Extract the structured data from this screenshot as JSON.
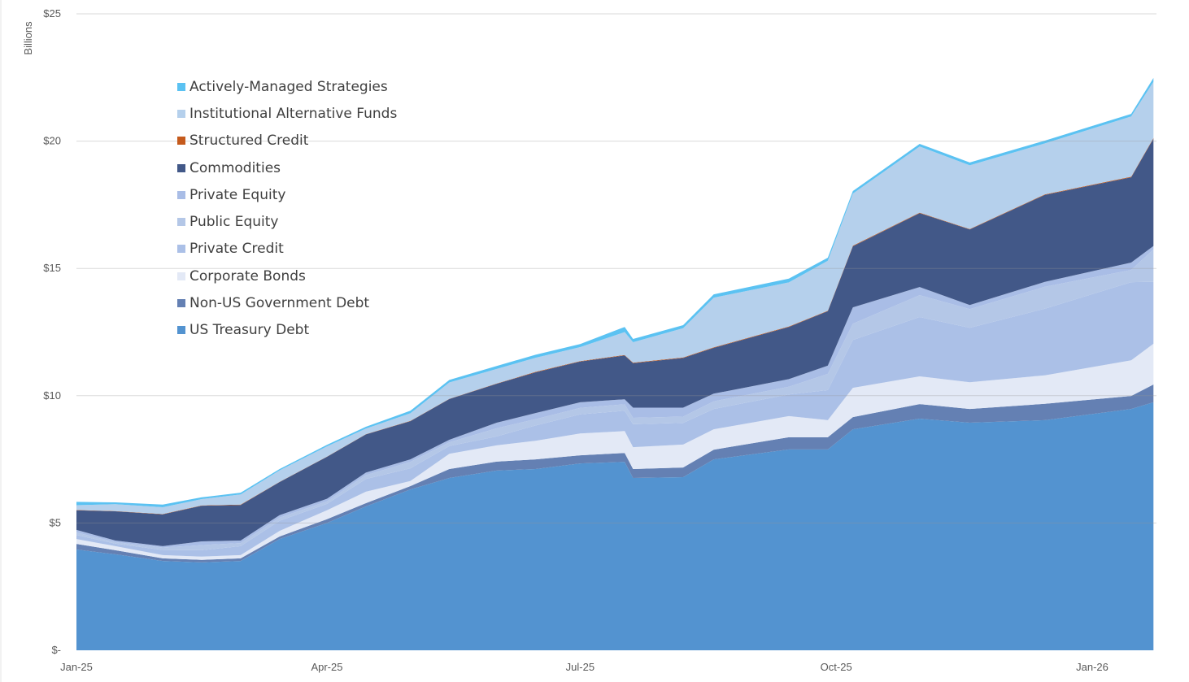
{
  "chart_data": {
    "type": "area",
    "stacked": true,
    "ylabel": "Billions",
    "ylim": [
      0,
      25
    ],
    "y_ticks": [
      0,
      5,
      10,
      15,
      20,
      25
    ],
    "y_tick_labels": [
      "$-",
      "$5",
      "$10",
      "$15",
      "$20",
      "$25"
    ],
    "x_tick_dates": [
      "2025-01-01",
      "2025-04-01",
      "2025-07-01",
      "2025-10-01",
      "2026-01-01"
    ],
    "x_tick_labels": [
      "Jan-25",
      "Apr-25",
      "Jul-25",
      "Oct-25",
      "Jan-26"
    ],
    "grid": "horizontal",
    "legend_position": "top-left",
    "x": [
      "2025-01-01",
      "2025-01-15",
      "2025-02-01",
      "2025-02-15",
      "2025-03-01",
      "2025-03-15",
      "2025-04-01",
      "2025-04-15",
      "2025-05-01",
      "2025-05-15",
      "2025-06-01",
      "2025-06-15",
      "2025-07-01",
      "2025-07-17",
      "2025-07-20",
      "2025-08-07",
      "2025-08-18",
      "2025-09-14",
      "2025-09-28",
      "2025-10-07",
      "2025-10-31",
      "2025-11-18",
      "2025-12-15",
      "2026-01-15",
      "2026-01-23"
    ],
    "series": [
      {
        "name": "Actively-Managed Strategies",
        "color": "#5bc2f2",
        "values": [
          0.13,
          0.07,
          0.1,
          0.07,
          0.07,
          0.05,
          0.06,
          0.07,
          0.1,
          0.1,
          0.12,
          0.12,
          0.12,
          0.2,
          0.13,
          0.12,
          0.13,
          0.15,
          0.12,
          0.1,
          0.1,
          0.11,
          0.11,
          0.1,
          0.15
        ]
      },
      {
        "name": "Institutional Alternative Funds",
        "color": "#b5d0ec",
        "values": [
          0.19,
          0.27,
          0.27,
          0.25,
          0.4,
          0.45,
          0.4,
          0.22,
          0.3,
          0.64,
          0.57,
          0.55,
          0.55,
          0.9,
          0.8,
          1.15,
          1.95,
          1.73,
          1.96,
          2.05,
          2.6,
          2.5,
          2.0,
          2.37,
          2.21
        ]
      },
      {
        "name": "Structured Credit",
        "color": "#c55a1c",
        "values": [
          0.01,
          0.01,
          0.01,
          0.01,
          0.01,
          0.01,
          0.01,
          0.01,
          0.01,
          0.01,
          0.01,
          0.02,
          0.02,
          0.02,
          0.02,
          0.02,
          0.02,
          0.02,
          0.02,
          0.02,
          0.02,
          0.02,
          0.02,
          0.02,
          0.02
        ]
      },
      {
        "name": "Commodities",
        "color": "#425888",
        "values": [
          0.77,
          1.15,
          1.25,
          1.4,
          1.4,
          1.3,
          1.65,
          1.5,
          1.5,
          1.6,
          1.53,
          1.6,
          1.6,
          1.72,
          1.75,
          1.95,
          1.8,
          2.05,
          2.14,
          2.4,
          2.9,
          2.97,
          3.42,
          3.35,
          4.22
        ]
      },
      {
        "name": "Private Equity",
        "color": "#a9bde6",
        "values": [
          0.1,
          0.06,
          0.05,
          0.15,
          0.1,
          0.1,
          0.1,
          0.1,
          0.1,
          0.1,
          0.22,
          0.24,
          0.22,
          0.2,
          0.4,
          0.35,
          0.3,
          0.3,
          0.32,
          0.64,
          0.32,
          0.16,
          0.19,
          0.29,
          0.13
        ]
      },
      {
        "name": "Public Equity",
        "color": "#b4c7e7",
        "values": [
          0.1,
          0.06,
          0.1,
          0.2,
          0.12,
          0.12,
          0.1,
          0.15,
          0.25,
          0.15,
          0.32,
          0.25,
          0.25,
          0.25,
          0.25,
          0.25,
          0.3,
          0.3,
          0.64,
          0.64,
          0.86,
          0.73,
          0.86,
          0.48,
          1.28
        ]
      },
      {
        "name": "Private Credit",
        "color": "#abc0e7",
        "values": [
          0.16,
          0.1,
          0.2,
          0.25,
          0.35,
          0.4,
          0.25,
          0.5,
          0.5,
          0.3,
          0.35,
          0.6,
          0.75,
          0.8,
          0.9,
          0.85,
          0.8,
          0.85,
          1.18,
          1.88,
          2.33,
          2.14,
          2.62,
          3.07,
          2.43
        ]
      },
      {
        "name": "Corporate Bonds",
        "color": "#e3e9f6",
        "values": [
          0.19,
          0.16,
          0.13,
          0.13,
          0.13,
          0.22,
          0.35,
          0.45,
          0.2,
          0.6,
          0.64,
          0.73,
          0.86,
          0.86,
          0.86,
          0.9,
          0.8,
          0.83,
          0.67,
          1.15,
          1.09,
          1.05,
          1.12,
          1.4,
          1.6
        ]
      },
      {
        "name": "Non-US Government Debt",
        "color": "#6480b3",
        "values": [
          0.22,
          0.16,
          0.1,
          0.1,
          0.1,
          0.1,
          0.15,
          0.13,
          0.13,
          0.35,
          0.35,
          0.38,
          0.32,
          0.35,
          0.35,
          0.38,
          0.38,
          0.48,
          0.48,
          0.48,
          0.57,
          0.54,
          0.64,
          0.51,
          0.7
        ]
      },
      {
        "name": "US Treasury Debt",
        "color": "#5393d0",
        "values": [
          3.96,
          3.77,
          3.51,
          3.45,
          3.51,
          4.37,
          5.0,
          5.65,
          6.32,
          6.77,
          7.06,
          7.12,
          7.34,
          7.4,
          6.77,
          6.8,
          7.5,
          7.89,
          7.89,
          8.68,
          9.1,
          8.94,
          9.04,
          9.48,
          9.74
        ]
      }
    ]
  }
}
